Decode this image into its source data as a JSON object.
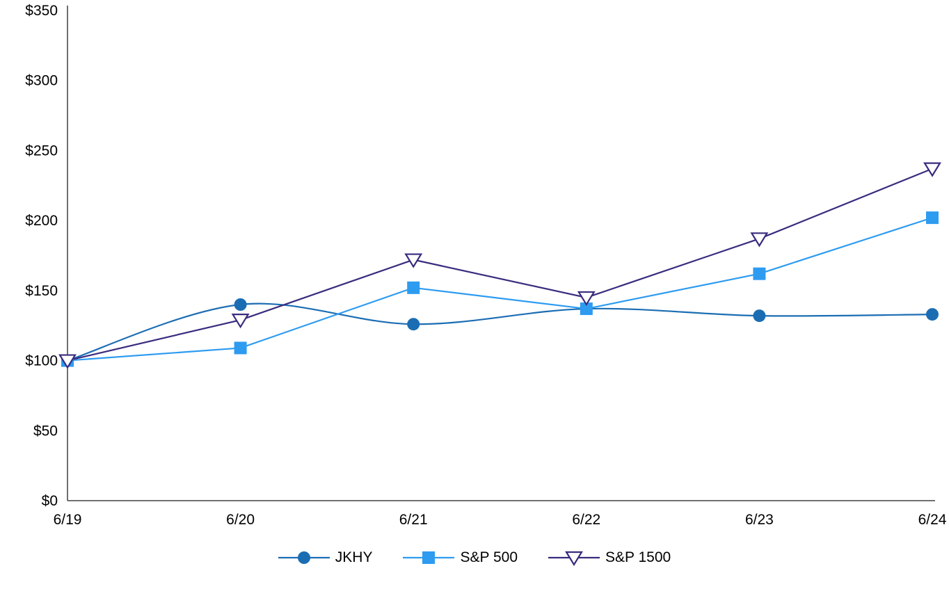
{
  "chart_data": {
    "type": "line",
    "title": "",
    "xlabel": "",
    "ylabel": "",
    "categories": [
      "6/19",
      "6/20",
      "6/21",
      "6/22",
      "6/23",
      "6/24"
    ],
    "series": [
      {
        "name": "JKHY",
        "values": [
          100,
          140,
          126,
          137,
          132,
          133
        ],
        "color": "#1b6db3",
        "marker": "circle",
        "smooth": true
      },
      {
        "name": "S&P 500",
        "values": [
          100,
          109,
          152,
          137,
          162,
          202
        ],
        "color": "#2d9bf0",
        "marker": "square",
        "smooth": false
      },
      {
        "name": "S&P 1500",
        "values": [
          100,
          129,
          172,
          145,
          187,
          237
        ],
        "color": "#3a2b7e",
        "marker": "triangle-down-open",
        "smooth": false
      }
    ],
    "ylim": [
      0,
      350
    ],
    "ytick_step": 50,
    "ytick_prefix": "$",
    "ytick_labels": [
      "$0",
      "$50",
      "$100",
      "$150",
      "$200",
      "$250",
      "$300",
      "$350"
    ],
    "grid": false,
    "legend_position": "bottom",
    "axis_color": "#404040",
    "text_color": "#000000"
  }
}
